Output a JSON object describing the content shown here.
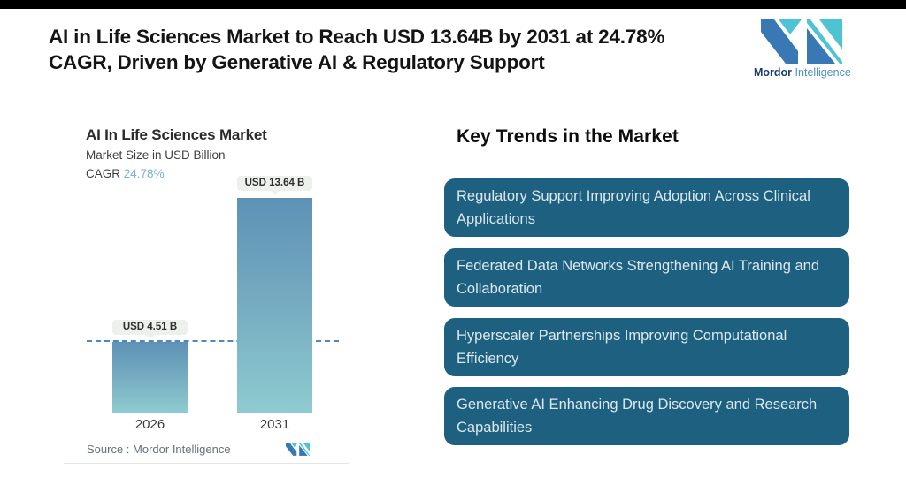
{
  "page": {
    "top_bar_color": "#000000",
    "background": "#ffffff"
  },
  "header": {
    "headline_line1": "AI in Life Sciences Market to Reach USD 13.64B by 2031 at 24.78%",
    "headline_line2": "CAGR, Driven by Generative AI & Regulatory Support",
    "logo": {
      "brand_bold": "Mordor",
      "brand_light": "Intelligence"
    }
  },
  "chart": {
    "title": "AI In Life Sciences Market",
    "subtitle": "Market Size in USD Billion",
    "cagr_label": "CAGR",
    "cagr_value": "24.78%",
    "source_label": "Source :  Mordor Intelligence",
    "chart_data": {
      "type": "bar",
      "categories": [
        "2026",
        "2031"
      ],
      "values": [
        4.51,
        13.64
      ],
      "value_labels": [
        "USD 4.51 B",
        "USD 13.64 B"
      ],
      "title": "AI In Life Sciences Market",
      "ylabel": "Market Size in USD Billion",
      "cagr_pct": 24.78,
      "reference_line": 4.51,
      "bar_gradient_top": "#5d92b6",
      "bar_gradient_bottom": "#8ecbd0",
      "dashed_line_color": "#4e87c6",
      "grid": false,
      "legend": false
    }
  },
  "trends": {
    "heading": "Key Trends in the Market",
    "card_color": "#1d607f",
    "items": [
      "Regulatory Support Improving Adoption Across Clinical Applications",
      "Federated Data Networks Strengthening AI Training and Collaboration",
      "Hyperscaler Partnerships Improving Computational Efficiency",
      "Generative AI Enhancing Drug Discovery and Research Capabilities"
    ]
  }
}
